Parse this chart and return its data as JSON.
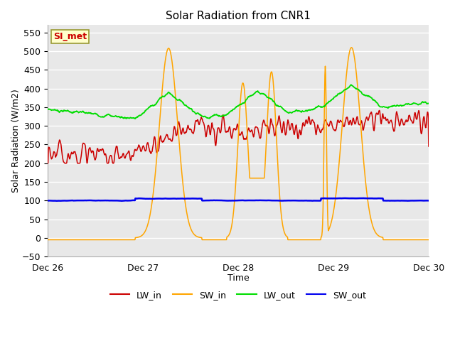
{
  "title": "Solar Radiation from CNR1",
  "xlabel": "Time",
  "ylabel": "Solar Radiation (W/m2)",
  "ylim": [
    -50,
    570
  ],
  "bg_color": "#e8e8e8",
  "fig_color": "#ffffff",
  "grid_color": "#ffffff",
  "series_colors": {
    "LW_in": "#cc0000",
    "SW_in": "#ffa500",
    "LW_out": "#00dd00",
    "SW_out": "#0000ee"
  },
  "station_label": "SI_met",
  "n_points": 1000
}
